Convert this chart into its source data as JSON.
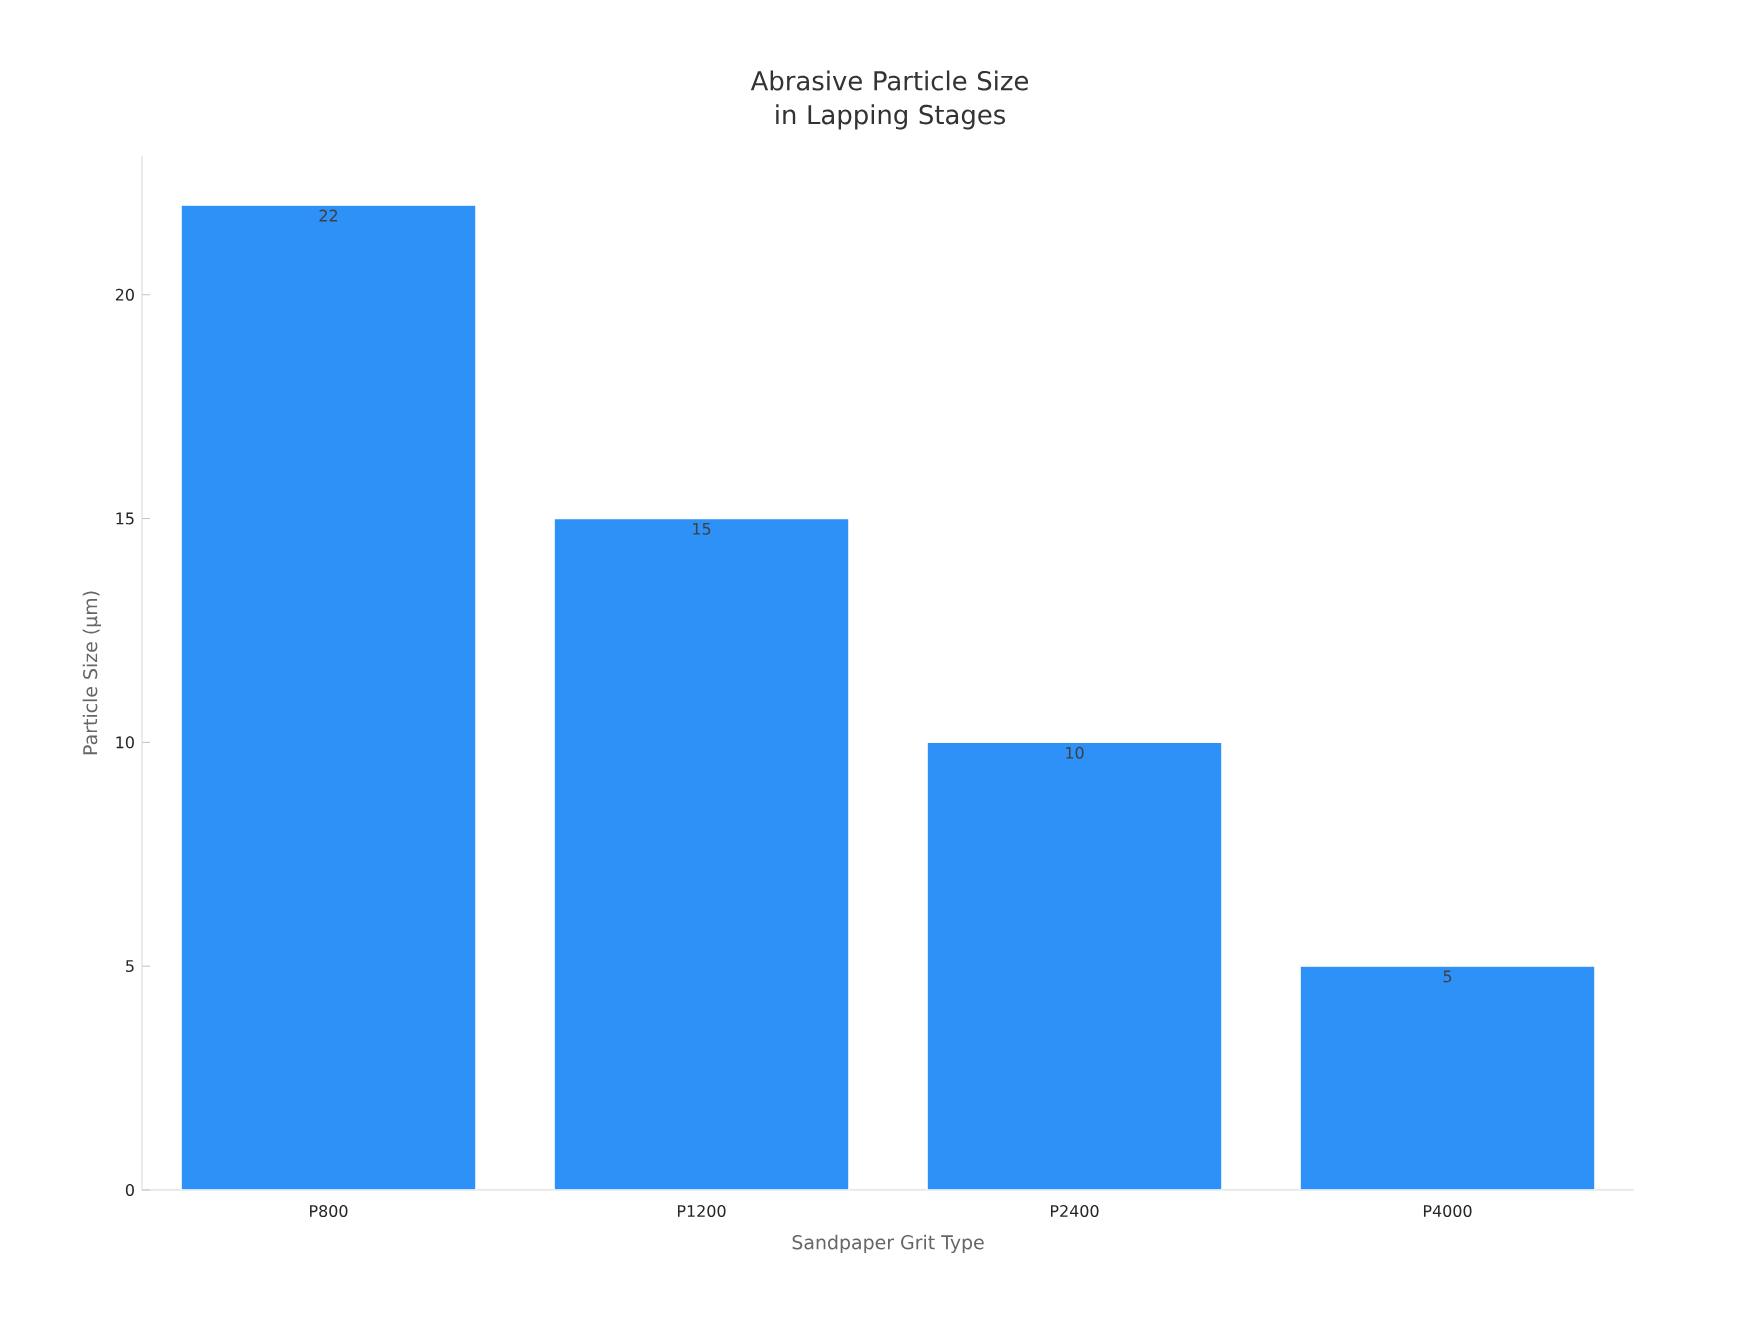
{
  "chart_data": {
    "type": "bar",
    "title": "Abrasive Particle Size in Lapping Stages",
    "xlabel": "Sandpaper Grit Type",
    "ylabel": "Particle Size (µm)",
    "categories": [
      "P800",
      "P1200",
      "P2400",
      "P4000"
    ],
    "values": [
      22,
      15,
      10,
      5
    ],
    "color": "#2d91f7",
    "ylim": [
      0,
      23.1
    ],
    "yticks": [
      0,
      5,
      10,
      15,
      20
    ],
    "data_labels": true
  }
}
